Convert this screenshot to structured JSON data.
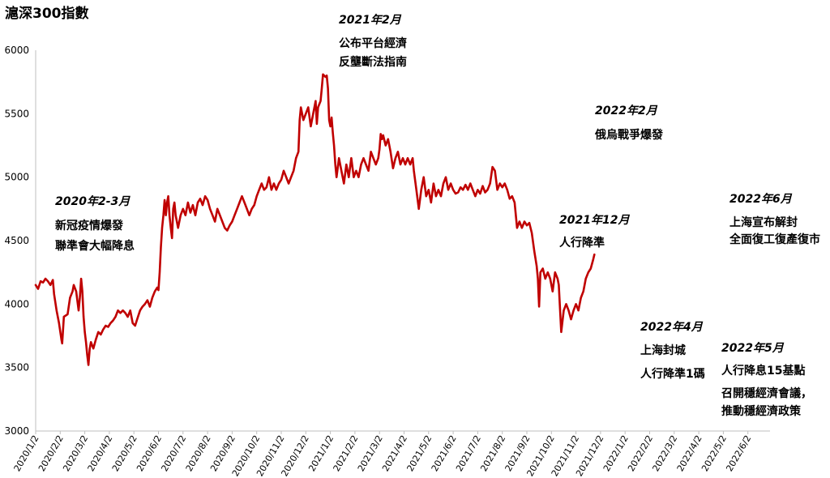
{
  "chart_data": {
    "type": "line",
    "title": "滬深300指數",
    "xlabel": "",
    "ylabel": "",
    "ylim": [
      3000,
      6000
    ],
    "yticks": [
      3000,
      3500,
      4000,
      4500,
      5000,
      5500,
      6000
    ],
    "grid": false,
    "legend": "none",
    "line_color": "#c00000",
    "xticks": [
      "2020/1/2",
      "2020/2/2",
      "2020/3/2",
      "2020/4/2",
      "2020/5/2",
      "2020/6/2",
      "2020/7/2",
      "2020/8/2",
      "2020/9/2",
      "2020/10/2",
      "2020/11/2",
      "2020/12/2",
      "2021/1/2",
      "2021/2/2",
      "2021/3/2",
      "2021/4/2",
      "2021/5/2",
      "2021/6/2",
      "2021/7/2",
      "2021/8/2",
      "2021/9/2",
      "2021/10/2",
      "2021/11/2",
      "2021/12/2",
      "2022/1/2",
      "2022/2/2",
      "2022/3/2",
      "2022/4/2",
      "2022/5/2",
      "2022/6/2"
    ],
    "series": [
      {
        "values": [
          [
            0,
            4150
          ],
          [
            0.1,
            4120
          ],
          [
            0.2,
            4180
          ],
          [
            0.3,
            4170
          ],
          [
            0.4,
            4200
          ],
          [
            0.5,
            4180
          ],
          [
            0.6,
            4150
          ],
          [
            0.7,
            4190
          ],
          [
            0.75,
            4080
          ],
          [
            0.85,
            3950
          ],
          [
            0.95,
            3850
          ],
          [
            1.05,
            3720
          ],
          [
            1.08,
            3690
          ],
          [
            1.15,
            3900
          ],
          [
            1.3,
            3920
          ],
          [
            1.4,
            4050
          ],
          [
            1.5,
            4100
          ],
          [
            1.55,
            4150
          ],
          [
            1.65,
            4100
          ],
          [
            1.75,
            3950
          ],
          [
            1.8,
            4050
          ],
          [
            1.85,
            4200
          ],
          [
            1.9,
            4100
          ],
          [
            1.95,
            3900
          ],
          [
            2.0,
            3780
          ],
          [
            2.05,
            3700
          ],
          [
            2.1,
            3600
          ],
          [
            2.15,
            3520
          ],
          [
            2.2,
            3650
          ],
          [
            2.25,
            3700
          ],
          [
            2.35,
            3650
          ],
          [
            2.45,
            3720
          ],
          [
            2.55,
            3780
          ],
          [
            2.65,
            3760
          ],
          [
            2.75,
            3800
          ],
          [
            2.85,
            3830
          ],
          [
            2.95,
            3820
          ],
          [
            3.05,
            3850
          ],
          [
            3.15,
            3870
          ],
          [
            3.25,
            3900
          ],
          [
            3.35,
            3950
          ],
          [
            3.45,
            3930
          ],
          [
            3.55,
            3950
          ],
          [
            3.65,
            3930
          ],
          [
            3.75,
            3900
          ],
          [
            3.85,
            3950
          ],
          [
            3.95,
            3850
          ],
          [
            4.05,
            3830
          ],
          [
            4.15,
            3890
          ],
          [
            4.25,
            3950
          ],
          [
            4.35,
            3980
          ],
          [
            4.45,
            4000
          ],
          [
            4.55,
            4030
          ],
          [
            4.65,
            3980
          ],
          [
            4.75,
            4050
          ],
          [
            4.85,
            4100
          ],
          [
            4.95,
            4130
          ],
          [
            5.0,
            4110
          ],
          [
            5.05,
            4250
          ],
          [
            5.1,
            4450
          ],
          [
            5.15,
            4600
          ],
          [
            5.2,
            4700
          ],
          [
            5.25,
            4820
          ],
          [
            5.3,
            4700
          ],
          [
            5.35,
            4800
          ],
          [
            5.4,
            4850
          ],
          [
            5.45,
            4700
          ],
          [
            5.5,
            4600
          ],
          [
            5.55,
            4520
          ],
          [
            5.6,
            4750
          ],
          [
            5.65,
            4800
          ],
          [
            5.7,
            4700
          ],
          [
            5.8,
            4600
          ],
          [
            5.9,
            4700
          ],
          [
            6.0,
            4750
          ],
          [
            6.1,
            4700
          ],
          [
            6.2,
            4800
          ],
          [
            6.3,
            4720
          ],
          [
            6.4,
            4780
          ],
          [
            6.5,
            4700
          ],
          [
            6.6,
            4800
          ],
          [
            6.7,
            4830
          ],
          [
            6.8,
            4780
          ],
          [
            6.9,
            4850
          ],
          [
            7.0,
            4820
          ],
          [
            7.1,
            4750
          ],
          [
            7.2,
            4700
          ],
          [
            7.3,
            4650
          ],
          [
            7.4,
            4750
          ],
          [
            7.5,
            4700
          ],
          [
            7.6,
            4650
          ],
          [
            7.7,
            4600
          ],
          [
            7.8,
            4580
          ],
          [
            7.9,
            4620
          ],
          [
            8.0,
            4650
          ],
          [
            8.1,
            4700
          ],
          [
            8.2,
            4750
          ],
          [
            8.3,
            4800
          ],
          [
            8.4,
            4850
          ],
          [
            8.5,
            4800
          ],
          [
            8.6,
            4750
          ],
          [
            8.7,
            4700
          ],
          [
            8.8,
            4750
          ],
          [
            8.9,
            4780
          ],
          [
            9.0,
            4850
          ],
          [
            9.1,
            4900
          ],
          [
            9.2,
            4950
          ],
          [
            9.3,
            4900
          ],
          [
            9.4,
            4920
          ],
          [
            9.5,
            5000
          ],
          [
            9.6,
            4900
          ],
          [
            9.7,
            4950
          ],
          [
            9.8,
            4900
          ],
          [
            9.9,
            4950
          ],
          [
            10.0,
            4980
          ],
          [
            10.1,
            5050
          ],
          [
            10.2,
            5000
          ],
          [
            10.3,
            4950
          ],
          [
            10.4,
            5000
          ],
          [
            10.5,
            5050
          ],
          [
            10.6,
            5150
          ],
          [
            10.7,
            5200
          ],
          [
            10.75,
            5450
          ],
          [
            10.8,
            5550
          ],
          [
            10.9,
            5450
          ],
          [
            11.0,
            5500
          ],
          [
            11.1,
            5550
          ],
          [
            11.2,
            5400
          ],
          [
            11.3,
            5500
          ],
          [
            11.4,
            5600
          ],
          [
            11.45,
            5420
          ],
          [
            11.5,
            5550
          ],
          [
            11.6,
            5600
          ],
          [
            11.65,
            5700
          ],
          [
            11.7,
            5810
          ],
          [
            11.8,
            5790
          ],
          [
            11.85,
            5800
          ],
          [
            11.9,
            5700
          ],
          [
            11.95,
            5450
          ],
          [
            12.0,
            5400
          ],
          [
            12.05,
            5470
          ],
          [
            12.1,
            5350
          ],
          [
            12.15,
            5250
          ],
          [
            12.2,
            5100
          ],
          [
            12.25,
            5000
          ],
          [
            12.35,
            5150
          ],
          [
            12.45,
            5050
          ],
          [
            12.55,
            4950
          ],
          [
            12.65,
            5100
          ],
          [
            12.75,
            5000
          ],
          [
            12.85,
            5150
          ],
          [
            12.95,
            5000
          ],
          [
            13.05,
            5050
          ],
          [
            13.15,
            5000
          ],
          [
            13.25,
            5100
          ],
          [
            13.35,
            5150
          ],
          [
            13.45,
            5100
          ],
          [
            13.55,
            5050
          ],
          [
            13.65,
            5200
          ],
          [
            13.75,
            5150
          ],
          [
            13.85,
            5100
          ],
          [
            13.95,
            5150
          ],
          [
            14.0,
            5220
          ],
          [
            14.05,
            5340
          ],
          [
            14.1,
            5300
          ],
          [
            14.15,
            5330
          ],
          [
            14.25,
            5250
          ],
          [
            14.35,
            5300
          ],
          [
            14.45,
            5200
          ],
          [
            14.55,
            5070
          ],
          [
            14.65,
            5150
          ],
          [
            14.75,
            5200
          ],
          [
            14.85,
            5100
          ],
          [
            14.95,
            5150
          ],
          [
            15.05,
            5100
          ],
          [
            15.15,
            5150
          ],
          [
            15.25,
            5100
          ],
          [
            15.35,
            5150
          ],
          [
            15.4,
            5050
          ],
          [
            15.5,
            4900
          ],
          [
            15.6,
            4750
          ],
          [
            15.7,
            4900
          ],
          [
            15.8,
            5000
          ],
          [
            15.9,
            4850
          ],
          [
            16.0,
            4900
          ],
          [
            16.1,
            4800
          ],
          [
            16.2,
            4950
          ],
          [
            16.3,
            4850
          ],
          [
            16.4,
            4900
          ],
          [
            16.5,
            4850
          ],
          [
            16.6,
            4950
          ],
          [
            16.7,
            5000
          ],
          [
            16.8,
            4900
          ],
          [
            16.9,
            4950
          ],
          [
            17.0,
            4900
          ],
          [
            17.1,
            4870
          ],
          [
            17.2,
            4880
          ],
          [
            17.3,
            4920
          ],
          [
            17.4,
            4900
          ],
          [
            17.5,
            4940
          ],
          [
            17.6,
            4900
          ],
          [
            17.7,
            4950
          ],
          [
            17.8,
            4900
          ],
          [
            17.9,
            4850
          ],
          [
            18.0,
            4900
          ],
          [
            18.1,
            4870
          ],
          [
            18.2,
            4930
          ],
          [
            18.3,
            4880
          ],
          [
            18.4,
            4900
          ],
          [
            18.5,
            4950
          ],
          [
            18.6,
            5080
          ],
          [
            18.7,
            5050
          ],
          [
            18.8,
            4900
          ],
          [
            18.9,
            4950
          ],
          [
            19.0,
            4920
          ],
          [
            19.1,
            4950
          ],
          [
            19.2,
            4900
          ],
          [
            19.3,
            4830
          ],
          [
            19.4,
            4850
          ],
          [
            19.5,
            4800
          ],
          [
            19.6,
            4600
          ],
          [
            19.7,
            4650
          ],
          [
            19.8,
            4600
          ],
          [
            19.9,
            4650
          ],
          [
            20.0,
            4620
          ],
          [
            20.1,
            4640
          ],
          [
            20.2,
            4560
          ],
          [
            20.3,
            4420
          ],
          [
            20.4,
            4300
          ],
          [
            20.45,
            4200
          ],
          [
            20.5,
            3980
          ],
          [
            20.55,
            4250
          ],
          [
            20.65,
            4280
          ],
          [
            20.75,
            4200
          ],
          [
            20.85,
            4250
          ],
          [
            20.95,
            4200
          ],
          [
            21.05,
            4100
          ],
          [
            21.15,
            4250
          ],
          [
            21.25,
            4200
          ],
          [
            21.3,
            4150
          ],
          [
            21.4,
            3780
          ],
          [
            21.5,
            3950
          ],
          [
            21.6,
            4000
          ],
          [
            21.7,
            3950
          ],
          [
            21.8,
            3880
          ],
          [
            21.9,
            3950
          ],
          [
            22.0,
            4000
          ],
          [
            22.1,
            3950
          ],
          [
            22.2,
            4050
          ],
          [
            22.3,
            4100
          ],
          [
            22.4,
            4200
          ],
          [
            22.5,
            4250
          ],
          [
            22.6,
            4280
          ],
          [
            22.7,
            4350
          ],
          [
            22.75,
            4390
          ]
        ]
      }
    ],
    "annotations": [
      {
        "date": "2020年2-3月",
        "lines": [
          "新冠疫情爆發",
          "聯準會大幅降息"
        ]
      },
      {
        "date": "2021年2月",
        "lines": [
          "公布平台經濟",
          "反壟斷法指南"
        ]
      },
      {
        "date": "2022年2月",
        "lines": [
          "俄烏戰爭爆發"
        ]
      },
      {
        "date": "2021年12月",
        "lines": [
          "人行降準"
        ]
      },
      {
        "date": "2022年6月",
        "lines": [
          "上海宣布解封",
          "全面復工復產復市"
        ]
      },
      {
        "date": "2022年4月",
        "lines": [
          "上海封城",
          "人行降準1碼"
        ]
      },
      {
        "date": "2022年5月",
        "lines": [
          "人行降息15基點",
          "召開穩經濟會議，",
          "推動穩經濟政策"
        ]
      }
    ]
  }
}
